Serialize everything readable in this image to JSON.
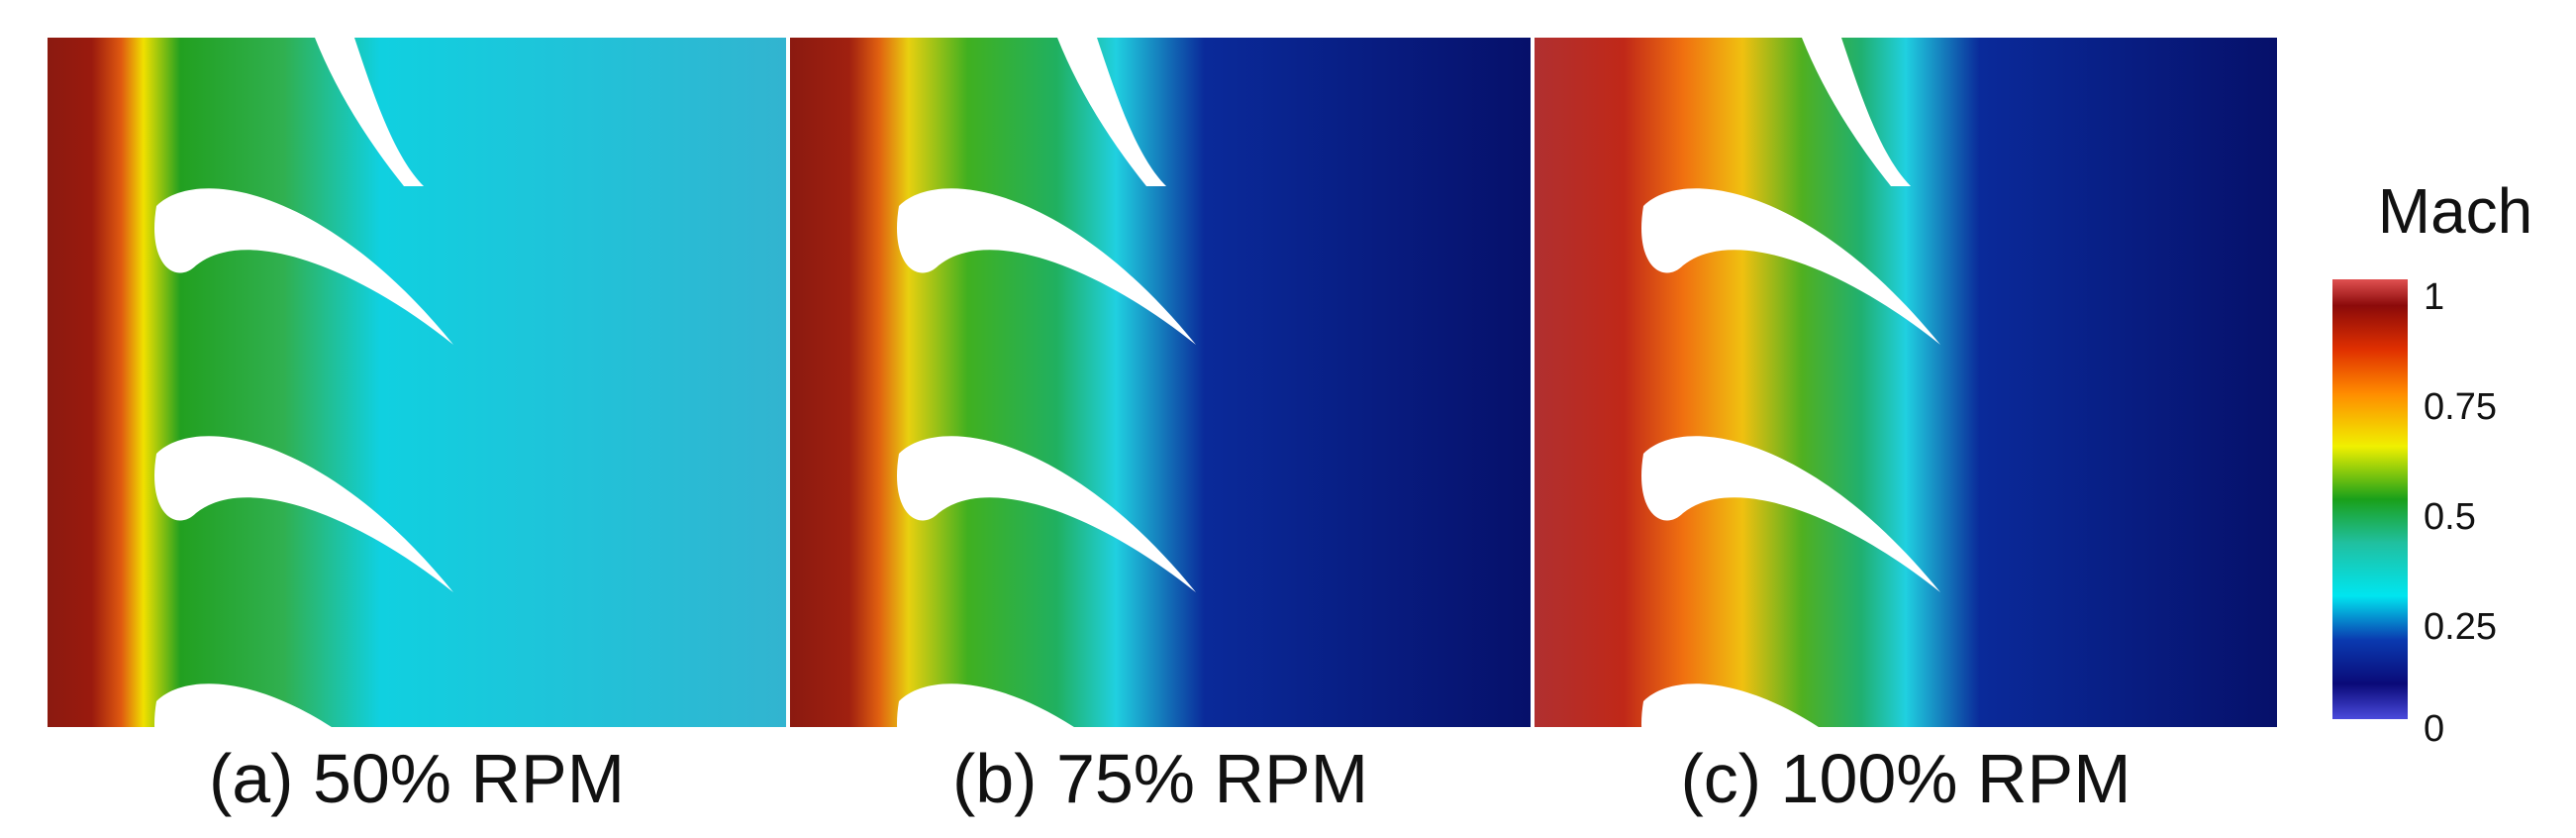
{
  "panels": [
    {
      "id": "a",
      "caption": "(a) 50% RPM"
    },
    {
      "id": "b",
      "caption": "(b) 75% RPM"
    },
    {
      "id": "c",
      "caption": "(c) 100% RPM"
    }
  ],
  "colorbar": {
    "title": "Mach",
    "ticks": [
      "1",
      "0.75",
      "0.5",
      "0.25",
      "0"
    ],
    "tick_values": [
      1,
      0.75,
      0.5,
      0.25,
      0
    ],
    "colors": [
      "#4a4adc",
      "#0a0a78",
      "#00e5f0",
      "#1aa01a",
      "#f0f000",
      "#ff8c00",
      "#e03000",
      "#8b0a0a",
      "#e05050"
    ]
  }
}
